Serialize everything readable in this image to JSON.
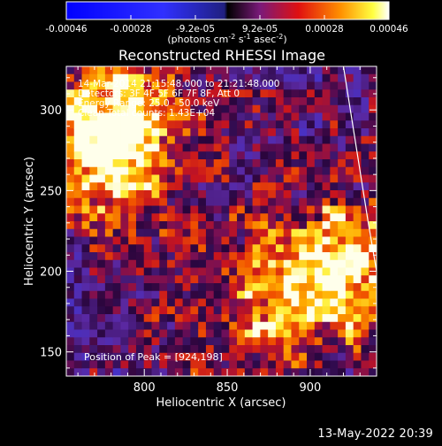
{
  "chart_data": {
    "type": "heatmap",
    "title": "Reconstructed RHESSI Image",
    "xlabel": "Heliocentric X (arcsec)",
    "ylabel": "Heliocentric Y (arcsec)",
    "xlim": [
      753,
      940
    ],
    "ylim": [
      135,
      327
    ],
    "xticks": [
      800,
      850,
      900
    ],
    "yticks": [
      150,
      200,
      250,
      300
    ],
    "colorbar": {
      "colormap": "IDL color table 3 (blue-negative, purple-red-yellow-white positive)",
      "range": [
        -0.00046,
        0.00046
      ],
      "tick_labels": [
        "-0.00046",
        "-0.00028",
        "-9.2e-05",
        "9.2e-05",
        "0.00028",
        "0.00046"
      ],
      "unit_parts": [
        "(photons cm",
        "-2",
        " s",
        "-1",
        " asec",
        "-2",
        ")"
      ]
    },
    "annotations": [
      "14-Mar-2014 21:15:48.000 to 21:21:48.000",
      "Detectors: 3F 4F 5F 6F 7F 8F, Att 0",
      "Energy Range: 25.0 - 50.0 keV",
      "Clean    Total counts: 1.43E+04"
    ],
    "peak_label": "Position of Peak = [924,198]",
    "peak": [
      924,
      198
    ],
    "bright_regions": [
      {
        "x": 785,
        "y": 270,
        "level": 0.85
      },
      {
        "x": 770,
        "y": 300,
        "level": 0.65
      },
      {
        "x": 920,
        "y": 202,
        "level": 1.0
      },
      {
        "x": 870,
        "y": 175,
        "level": 0.6
      }
    ],
    "limb": [
      [
        920,
        327
      ],
      [
        935,
        230
      ],
      [
        940,
        200
      ]
    ]
  },
  "footer_date": "13-May-2022 20:39"
}
